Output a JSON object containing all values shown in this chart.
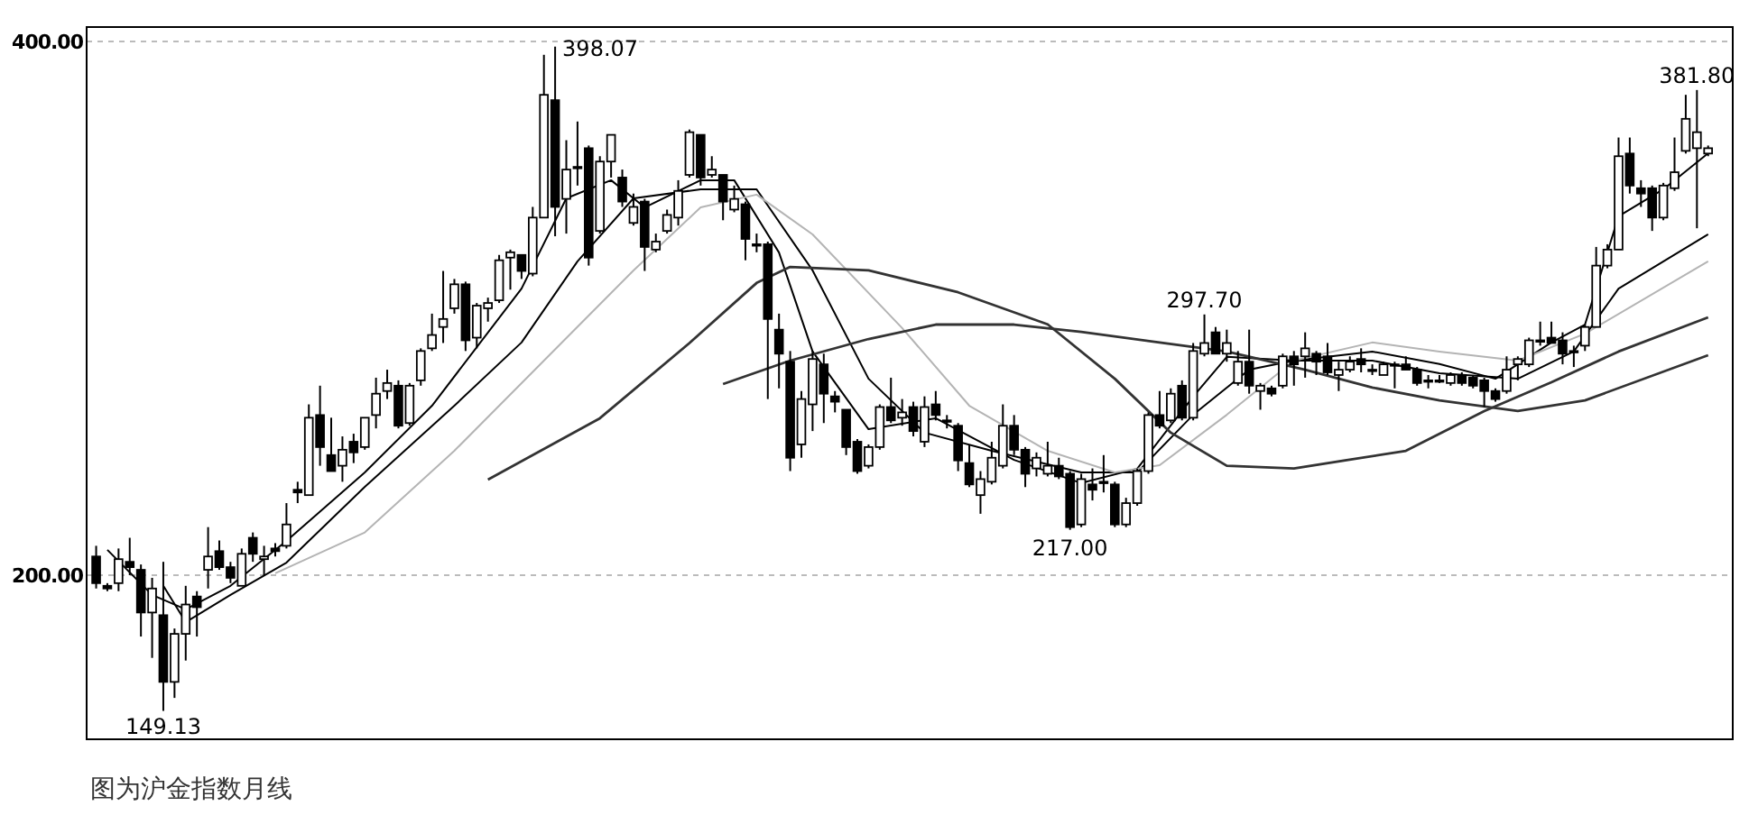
{
  "chart_data": {
    "type": "candlestick",
    "color": "#000000",
    "grid": "y",
    "tick_labels": "y",
    "ylim": [
      138.5,
      405.4
    ],
    "yticks": [
      {
        "value": 200,
        "label": "200.00"
      },
      {
        "value": 400,
        "label": "400.00"
      }
    ],
    "categories": [
      null,
      null,
      null,
      null,
      null,
      null,
      null,
      null,
      null,
      null,
      null,
      null,
      null,
      null,
      null,
      null,
      null,
      null,
      null,
      null,
      null,
      null,
      null,
      null,
      null,
      null,
      null,
      null,
      null,
      null,
      null,
      null,
      null,
      null,
      null,
      null,
      null,
      null,
      null,
      null,
      null,
      null,
      null,
      null,
      null,
      null,
      null,
      null,
      null,
      null,
      null,
      null,
      null,
      null,
      null,
      null,
      null,
      null,
      null,
      null,
      null,
      null,
      null,
      null,
      null,
      null,
      null,
      null,
      null,
      null,
      null,
      null,
      null,
      null,
      null,
      null,
      null,
      null,
      null,
      null,
      null,
      null,
      null,
      null,
      null,
      null,
      null,
      null,
      null,
      null,
      null,
      null,
      null,
      null,
      null,
      null,
      null,
      null,
      null,
      null,
      null,
      null,
      null,
      null,
      null,
      null,
      null,
      null,
      null,
      null,
      null,
      null,
      null,
      null,
      null,
      null,
      null,
      null,
      null,
      null,
      null,
      null,
      null,
      null,
      null,
      null,
      null,
      null,
      null,
      null,
      null,
      null,
      null,
      null,
      null,
      null,
      null,
      null,
      null,
      null,
      null,
      null,
      null,
      null,
      null
    ],
    "ohlc": [
      [
        207,
        211,
        195,
        197
      ],
      [
        196,
        197,
        194,
        195
      ],
      [
        197,
        210,
        194,
        206
      ],
      [
        205,
        214,
        200,
        203
      ],
      [
        202,
        204,
        177,
        186
      ],
      [
        186,
        199,
        169,
        195
      ],
      [
        185,
        205,
        149.13,
        160
      ],
      [
        160,
        180,
        154,
        178
      ],
      [
        178,
        196,
        168,
        189
      ],
      [
        192,
        194,
        177,
        188
      ],
      [
        202,
        218,
        195,
        207
      ],
      [
        209,
        213,
        202,
        203
      ],
      [
        203,
        205,
        197,
        199
      ],
      [
        196,
        210,
        196,
        208
      ],
      [
        214,
        216,
        205,
        208
      ],
      [
        206,
        211,
        200,
        207
      ],
      [
        210,
        212,
        207,
        209
      ],
      [
        211,
        227,
        210,
        219
      ],
      [
        232,
        235,
        227,
        231
      ],
      [
        230,
        264,
        230,
        259
      ],
      [
        260,
        271,
        241,
        248
      ],
      [
        245,
        259,
        239,
        239
      ],
      [
        241,
        252,
        235,
        247
      ],
      [
        250,
        253,
        242,
        246
      ],
      [
        248,
        259,
        247,
        259
      ],
      [
        260,
        274,
        255,
        268
      ],
      [
        269,
        277,
        266,
        272
      ],
      [
        271,
        273,
        255,
        256
      ],
      [
        257,
        272,
        256,
        271
      ],
      [
        273,
        285,
        271,
        284
      ],
      [
        285,
        298,
        284,
        290
      ],
      [
        293,
        314,
        287,
        296
      ],
      [
        300,
        311,
        298,
        309
      ],
      [
        309,
        310,
        284,
        288
      ],
      [
        289,
        302,
        285,
        301
      ],
      [
        300,
        304,
        295,
        302
      ],
      [
        303,
        320,
        302,
        318
      ],
      [
        319,
        322,
        307,
        321
      ],
      [
        320,
        320,
        311,
        314
      ],
      [
        313,
        338,
        312,
        334
      ],
      [
        334,
        395,
        334,
        380
      ],
      [
        378,
        398.07,
        327,
        338
      ],
      [
        341,
        363,
        328,
        352
      ],
      [
        353,
        370,
        346,
        353
      ],
      [
        360,
        361,
        316,
        319
      ],
      [
        329,
        357,
        328,
        355
      ],
      [
        355,
        365,
        349,
        365
      ],
      [
        349,
        352,
        338,
        340
      ],
      [
        332,
        343,
        331,
        338
      ],
      [
        340,
        341,
        314,
        323
      ],
      [
        322,
        328,
        321,
        325
      ],
      [
        329,
        337,
        328,
        335
      ],
      [
        334,
        348,
        331,
        344
      ],
      [
        350,
        367,
        349,
        366
      ],
      [
        365,
        365,
        346,
        349
      ],
      [
        350,
        357,
        349,
        352
      ],
      [
        350,
        350,
        333,
        340
      ],
      [
        337,
        346,
        336,
        341
      ],
      [
        339,
        340,
        318,
        326
      ],
      [
        324,
        328,
        321,
        324
      ],
      [
        324,
        325,
        266,
        296
      ],
      [
        292,
        298,
        270,
        283
      ],
      [
        280,
        284,
        239,
        244
      ],
      [
        249,
        269,
        244,
        266
      ],
      [
        264,
        284,
        254,
        281
      ],
      [
        279,
        283,
        257,
        268
      ],
      [
        267,
        269,
        261,
        265
      ],
      [
        262,
        262,
        245,
        248
      ],
      [
        250,
        251,
        238,
        239
      ],
      [
        241,
        249,
        240,
        248
      ],
      [
        248,
        264,
        247,
        263
      ],
      [
        263,
        274,
        257,
        258
      ],
      [
        259,
        266,
        256,
        261
      ],
      [
        263,
        265,
        252,
        254
      ],
      [
        250,
        267,
        248,
        263
      ],
      [
        264,
        269,
        258,
        260
      ],
      [
        258,
        260,
        255,
        258
      ],
      [
        256,
        257,
        239,
        243
      ],
      [
        242,
        249,
        233,
        234
      ],
      [
        230,
        239,
        223,
        236
      ],
      [
        235,
        250,
        234,
        244
      ],
      [
        241,
        264,
        240,
        256
      ],
      [
        256,
        260,
        245,
        247
      ],
      [
        247,
        248,
        233,
        238
      ],
      [
        240,
        246,
        237,
        244
      ],
      [
        238,
        250,
        237,
        241
      ],
      [
        241,
        244,
        236,
        237
      ],
      [
        238,
        239,
        217.0,
        218
      ],
      [
        219,
        238,
        218,
        236
      ],
      [
        234,
        240,
        228,
        232
      ],
      [
        235,
        245,
        231,
        235
      ],
      [
        234,
        235,
        218,
        219
      ],
      [
        219,
        229,
        218,
        227
      ],
      [
        227,
        240,
        226,
        239
      ],
      [
        239,
        261,
        238,
        260
      ],
      [
        260,
        269,
        255,
        256
      ],
      [
        258,
        270,
        257,
        268
      ],
      [
        271,
        273,
        258,
        259
      ],
      [
        259,
        287,
        258,
        284
      ],
      [
        283,
        297.7,
        282,
        287
      ],
      [
        291,
        293,
        283,
        283
      ],
      [
        283,
        292,
        280,
        287
      ],
      [
        272,
        284,
        271,
        280
      ],
      [
        280,
        292,
        268,
        271
      ],
      [
        269,
        272,
        262,
        271
      ],
      [
        270,
        271,
        267,
        268
      ],
      [
        271,
        283,
        270,
        282
      ],
      [
        282,
        284,
        271,
        279
      ],
      [
        282,
        291,
        274,
        285
      ],
      [
        283,
        284,
        275,
        280
      ],
      [
        282,
        287,
        275,
        276
      ],
      [
        275,
        280,
        269,
        277
      ],
      [
        277,
        282,
        276,
        280
      ],
      [
        281,
        285,
        276,
        279
      ],
      [
        277,
        279,
        275,
        277
      ],
      [
        275,
        280,
        275,
        279
      ],
      [
        279,
        280,
        270,
        279
      ],
      [
        279,
        282,
        277,
        277
      ],
      [
        277,
        278,
        271,
        272
      ],
      [
        273,
        275,
        270,
        273
      ],
      [
        273,
        275,
        272,
        273
      ],
      [
        272,
        276,
        271,
        275
      ],
      [
        275,
        276,
        271,
        272
      ],
      [
        274,
        275,
        270,
        271
      ],
      [
        273,
        274,
        263,
        269
      ],
      [
        269,
        270,
        265,
        266
      ],
      [
        269,
        282,
        268,
        277
      ],
      [
        279,
        282,
        273,
        281
      ],
      [
        279,
        289,
        278,
        288
      ],
      [
        288,
        295,
        286,
        288
      ],
      [
        289,
        295,
        287,
        287
      ],
      [
        288,
        291,
        279,
        283
      ],
      [
        284,
        286,
        278,
        284
      ],
      [
        286,
        294,
        284,
        293
      ],
      [
        293,
        323,
        293,
        316
      ],
      [
        316,
        324,
        315,
        322
      ],
      [
        322,
        364,
        322,
        357
      ],
      [
        358,
        364,
        343,
        346
      ],
      [
        345,
        348,
        338,
        343
      ],
      [
        345,
        346,
        329,
        334
      ],
      [
        334,
        347,
        333,
        346
      ],
      [
        345,
        364,
        344,
        351
      ],
      [
        359,
        380,
        358,
        371
      ],
      [
        360,
        381.8,
        330,
        366
      ],
      [
        358,
        361,
        357,
        360
      ]
    ],
    "series": [
      {
        "type": "line",
        "color": "#000000",
        "values": [
          null,
          209.5,
          null,
          null,
          null,
          192.6,
          null,
          null,
          187.2,
          null,
          null,
          null,
          196,
          null,
          null,
          null,
          null,
          212.8,
          null,
          null,
          null,
          null,
          null,
          null,
          238.5,
          null,
          null,
          null,
          null,
          null,
          263.5,
          null,
          null,
          null,
          null,
          null,
          null,
          null,
          307.4,
          null,
          null,
          null,
          341.2,
          null,
          null,
          null,
          348,
          null,
          null,
          337.8,
          null,
          null,
          null,
          null,
          348,
          null,
          null,
          348,
          null,
          null,
          null,
          320.9,
          null,
          null,
          283.8,
          null,
          null,
          null,
          null,
          254.7,
          null,
          null,
          null,
          null,
          null,
          258.8,
          null,
          null,
          null,
          null,
          null,
          null,
          243.2,
          null,
          null,
          null,
          null,
          null,
          234.5,
          null,
          null,
          null,
          null,
          239.9,
          null,
          null,
          null,
          null,
          266.9,
          null,
          null,
          281.8,
          null,
          null,
          null,
          null,
          null,
          280.4,
          null,
          null,
          null,
          null,
          null,
          null,
          283.8,
          null,
          null,
          null,
          null,
          null,
          279.1,
          null,
          null,
          null,
          null,
          273.6,
          null,
          null,
          null,
          null,
          287.2,
          null,
          null,
          293.9,
          null,
          null,
          334.5,
          null,
          null,
          null,
          344.6,
          null,
          null,
          null,
          358.1
        ]
      },
      {
        "type": "line",
        "color": "#000000",
        "values": [
          null,
          null,
          null,
          null,
          null,
          null,
          196,
          null,
          182.4,
          null,
          null,
          null,
          192.6,
          null,
          null,
          null,
          null,
          204.7,
          null,
          null,
          null,
          null,
          null,
          null,
          233.1,
          null,
          null,
          null,
          null,
          null,
          null,
          null,
          263.5,
          null,
          null,
          null,
          null,
          null,
          287.2,
          null,
          null,
          null,
          null,
          317.6,
          null,
          null,
          null,
          null,
          341.2,
          null,
          null,
          null,
          null,
          null,
          344.6,
          null,
          null,
          null,
          null,
          344.6,
          null,
          null,
          null,
          null,
          314.2,
          null,
          null,
          null,
          null,
          273.6,
          null,
          null,
          null,
          null,
          253.4,
          null,
          null,
          null,
          null,
          null,
          246.6,
          null,
          null,
          null,
          null,
          null,
          null,
          null,
          238.5,
          null,
          null,
          null,
          null,
          238.5,
          null,
          null,
          null,
          null,
          260.1,
          null,
          null,
          null,
          null,
          277,
          null,
          null,
          null,
          280.4,
          null,
          null,
          null,
          null,
          null,
          null,
          280.4,
          null,
          null,
          null,
          null,
          null,
          275.7,
          null,
          null,
          null,
          null,
          null,
          null,
          273.6,
          null,
          null,
          null,
          null,
          283.8,
          null,
          null,
          null,
          307.4,
          null,
          null,
          null,
          null,
          null,
          null,
          null,
          327.7
        ]
      },
      {
        "type": "line",
        "color": "#b4b4b4",
        "values": [
          null,
          null,
          null,
          null,
          null,
          null,
          null,
          null,
          null,
          null,
          null,
          null,
          null,
          null,
          null,
          null,
          200.7,
          null,
          null,
          null,
          null,
          null,
          null,
          null,
          216,
          null,
          null,
          null,
          null,
          null,
          null,
          null,
          246.6,
          null,
          null,
          null,
          null,
          null,
          null,
          null,
          280.4,
          null,
          null,
          null,
          null,
          null,
          null,
          null,
          314.2,
          null,
          null,
          null,
          null,
          null,
          337.8,
          null,
          null,
          null,
          null,
          342.6,
          null,
          null,
          null,
          null,
          327.7,
          null,
          null,
          null,
          null,
          null,
          null,
          null,
          292.6,
          null,
          null,
          null,
          null,
          null,
          263.5,
          null,
          null,
          null,
          null,
          null,
          null,
          246.6,
          null,
          null,
          null,
          null,
          null,
          238.5,
          null,
          null,
          null,
          241.2,
          null,
          null,
          null,
          null,
          null,
          260.1,
          null,
          null,
          null,
          null,
          null,
          280.4,
          null,
          null,
          null,
          null,
          null,
          null,
          287.2,
          null,
          null,
          null,
          null,
          null,
          283.8,
          null,
          null,
          null,
          null,
          null,
          null,
          280.4,
          null,
          null,
          null,
          null,
          null,
          290.5,
          null,
          null,
          null,
          null,
          null,
          null,
          null,
          null,
          null,
          null,
          317.6
        ]
      },
      {
        "type": "line",
        "color": "#333333",
        "values": [
          null,
          null,
          null,
          null,
          null,
          null,
          null,
          null,
          null,
          null,
          null,
          null,
          null,
          null,
          null,
          null,
          null,
          null,
          null,
          null,
          null,
          null,
          null,
          null,
          null,
          null,
          null,
          null,
          null,
          null,
          null,
          null,
          null,
          null,
          null,
          235.8,
          null,
          null,
          null,
          null,
          null,
          null,
          null,
          null,
          null,
          258.8,
          null,
          null,
          null,
          null,
          null,
          null,
          null,
          287,
          null,
          null,
          null,
          null,
          null,
          309.5,
          null,
          null,
          315.5,
          null,
          null,
          null,
          null,
          null,
          null,
          314.2,
          null,
          null,
          null,
          null,
          null,
          null,
          null,
          306,
          null,
          null,
          null,
          null,
          null,
          null,
          null,
          294,
          null,
          null,
          null,
          null,
          null,
          273.6,
          null,
          null,
          null,
          null,
          253.4,
          null,
          null,
          null,
          null,
          241,
          null,
          null,
          null,
          null,
          null,
          240,
          null,
          null,
          null,
          null,
          null,
          null,
          null,
          null,
          null,
          246.6,
          null,
          null,
          null,
          null,
          null,
          null,
          261.5,
          null,
          null,
          null,
          null,
          null,
          272.3,
          null,
          null,
          null,
          null,
          null,
          283.8,
          null,
          null,
          null,
          null,
          null,
          null,
          null,
          296.6
        ]
      },
      {
        "type": "line",
        "color": "#333333",
        "values": [
          null,
          null,
          null,
          null,
          null,
          null,
          null,
          null,
          null,
          null,
          null,
          null,
          null,
          null,
          null,
          null,
          null,
          null,
          null,
          null,
          null,
          null,
          null,
          null,
          null,
          null,
          null,
          null,
          null,
          null,
          null,
          null,
          null,
          null,
          null,
          null,
          null,
          null,
          null,
          null,
          null,
          null,
          null,
          null,
          null,
          null,
          null,
          null,
          null,
          null,
          null,
          null,
          null,
          null,
          null,
          null,
          271.6,
          null,
          null,
          null,
          null,
          null,
          280.4,
          null,
          null,
          null,
          null,
          null,
          null,
          288.5,
          null,
          null,
          null,
          null,
          null,
          293.9,
          null,
          null,
          null,
          null,
          null,
          null,
          293.9,
          null,
          null,
          null,
          null,
          null,
          291.2,
          null,
          null,
          null,
          null,
          null,
          null,
          287.2,
          null,
          null,
          null,
          null,
          null,
          283.8,
          null,
          null,
          null,
          null,
          null,
          null,
          277,
          null,
          null,
          null,
          null,
          null,
          270.3,
          null,
          null,
          null,
          null,
          null,
          265.5,
          null,
          null,
          null,
          null,
          null,
          null,
          261.5,
          null,
          null,
          null,
          null,
          null,
          265.5,
          null,
          null,
          null,
          null,
          null,
          null,
          null,
          null,
          null,
          null,
          282.4
        ]
      }
    ],
    "annotations": [
      "398.07",
      {
        "text": "381.80",
        "y": 381.8
      },
      {
        "text": "297.70",
        "y": 297.7
      },
      {
        "text": "217.00",
        "y": 217.0
      },
      {
        "text": "149.13",
        "y": 149.13
      },
      "图为沪金指数月线"
    ]
  }
}
